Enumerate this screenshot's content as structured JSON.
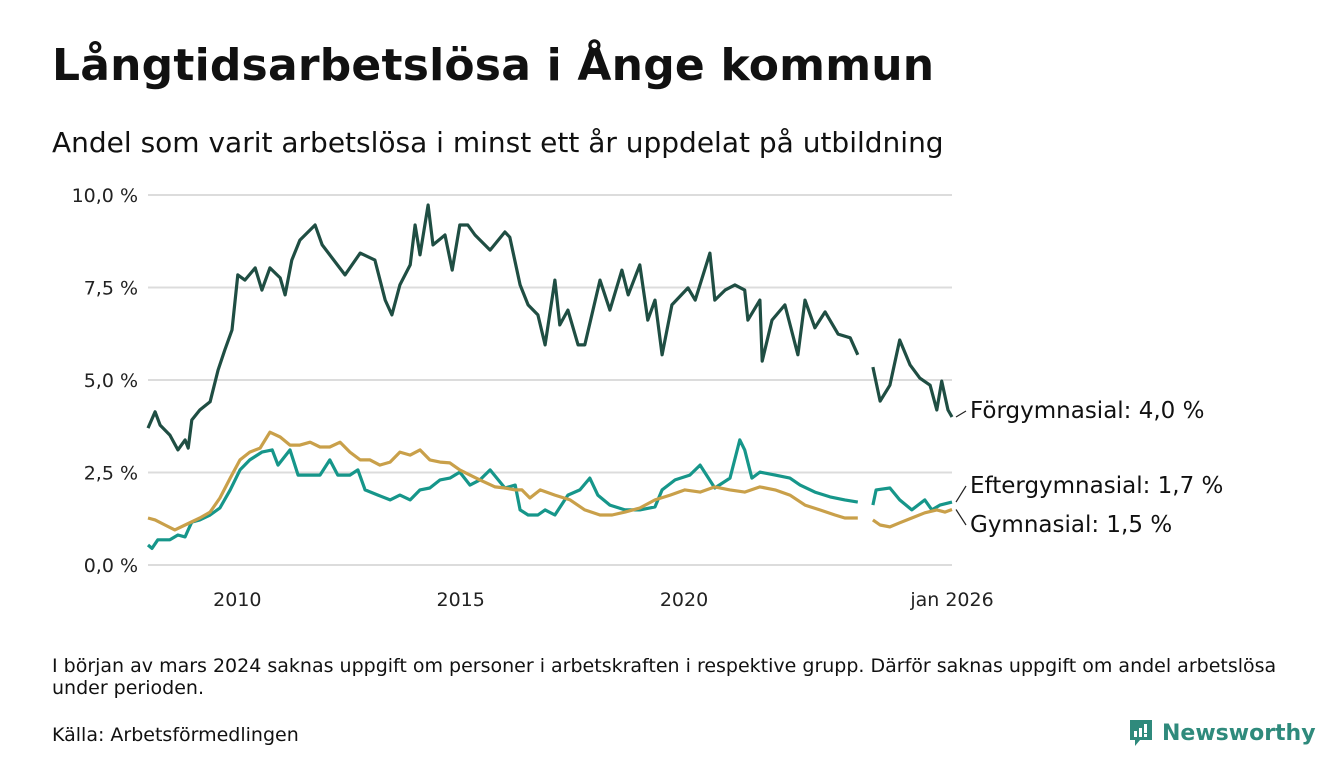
{
  "header": {
    "title": "Långtidsarbetslösa i Ånge kommun",
    "subtitle": "Andel som varit arbetslösa i minst ett år uppdelat på utbildning"
  },
  "footer": {
    "note": "I början av mars 2024 saknas uppgift om personer i arbetskraften i respektive grupp. Därför saknas uppgift om andel arbetslösa under perioden.",
    "source": "Källa: Arbetsförmedlingen",
    "brand": "Newsworthy"
  },
  "chart_data": {
    "type": "line",
    "title": "Långtidsarbetslösa i Ånge kommun",
    "xlabel": "",
    "ylabel": "",
    "xlim": [
      2008.0,
      2026.0
    ],
    "ylim": [
      0,
      10
    ],
    "grid": true,
    "y_ticks": [
      {
        "v": 0,
        "label": "0,0 %"
      },
      {
        "v": 2.5,
        "label": "2,5 %"
      },
      {
        "v": 5,
        "label": "5,0 %"
      },
      {
        "v": 7.5,
        "label": "7,5 %"
      },
      {
        "v": 10,
        "label": "10,0 %"
      }
    ],
    "x_ticks": [
      {
        "v": 2010,
        "label": "2010"
      },
      {
        "v": 2015,
        "label": "2015"
      },
      {
        "v": 2020,
        "label": "2020"
      },
      {
        "v": 2026,
        "label": "jan 2026"
      }
    ],
    "series": [
      {
        "name": "Förgymnasial",
        "end_label": "Förgymnasial: 4,0 %",
        "color": "#1f4e43",
        "points": [
          [
            2008.0,
            3.7
          ],
          [
            2008.16,
            4.14
          ],
          [
            2008.27,
            3.78
          ],
          [
            2008.49,
            3.51
          ],
          [
            2008.67,
            3.11
          ],
          [
            2008.83,
            3.38
          ],
          [
            2008.9,
            3.16
          ],
          [
            2008.98,
            3.92
          ],
          [
            2009.16,
            4.19
          ],
          [
            2009.39,
            4.41
          ],
          [
            2009.57,
            5.27
          ],
          [
            2009.72,
            5.81
          ],
          [
            2009.88,
            6.35
          ],
          [
            2010.01,
            7.84
          ],
          [
            2010.17,
            7.7
          ],
          [
            2010.4,
            8.03
          ],
          [
            2010.55,
            7.43
          ],
          [
            2010.73,
            8.03
          ],
          [
            2010.96,
            7.76
          ],
          [
            2011.07,
            7.3
          ],
          [
            2011.22,
            8.24
          ],
          [
            2011.4,
            8.78
          ],
          [
            2011.74,
            9.19
          ],
          [
            2011.9,
            8.65
          ],
          [
            2012.07,
            8.38
          ],
          [
            2012.41,
            7.84
          ],
          [
            2012.75,
            8.43
          ],
          [
            2013.08,
            8.24
          ],
          [
            2013.31,
            7.16
          ],
          [
            2013.46,
            6.76
          ],
          [
            2013.64,
            7.57
          ],
          [
            2013.87,
            8.11
          ],
          [
            2013.98,
            9.19
          ],
          [
            2014.09,
            8.38
          ],
          [
            2014.27,
            9.73
          ],
          [
            2014.38,
            8.65
          ],
          [
            2014.65,
            8.92
          ],
          [
            2014.81,
            7.97
          ],
          [
            2014.98,
            9.19
          ],
          [
            2015.16,
            9.19
          ],
          [
            2015.32,
            8.92
          ],
          [
            2015.66,
            8.51
          ],
          [
            2015.99,
            9.0
          ],
          [
            2016.1,
            8.86
          ],
          [
            2016.33,
            7.57
          ],
          [
            2016.51,
            7.03
          ],
          [
            2016.73,
            6.76
          ],
          [
            2016.89,
            5.95
          ],
          [
            2017.11,
            7.7
          ],
          [
            2017.22,
            6.49
          ],
          [
            2017.4,
            6.89
          ],
          [
            2017.63,
            5.95
          ],
          [
            2017.78,
            5.95
          ],
          [
            2018.12,
            7.7
          ],
          [
            2018.34,
            6.89
          ],
          [
            2018.61,
            7.97
          ],
          [
            2018.75,
            7.3
          ],
          [
            2019.01,
            8.11
          ],
          [
            2019.19,
            6.62
          ],
          [
            2019.35,
            7.16
          ],
          [
            2019.51,
            5.68
          ],
          [
            2019.73,
            7.03
          ],
          [
            2020.09,
            7.49
          ],
          [
            2020.25,
            7.16
          ],
          [
            2020.58,
            8.43
          ],
          [
            2020.69,
            7.16
          ],
          [
            2020.92,
            7.43
          ],
          [
            2021.14,
            7.57
          ],
          [
            2021.36,
            7.43
          ],
          [
            2021.43,
            6.62
          ],
          [
            2021.7,
            7.16
          ],
          [
            2021.75,
            5.51
          ],
          [
            2021.97,
            6.62
          ],
          [
            2022.26,
            7.03
          ],
          [
            2022.55,
            5.68
          ],
          [
            2022.71,
            7.16
          ],
          [
            2022.93,
            6.41
          ],
          [
            2023.16,
            6.84
          ],
          [
            2023.45,
            6.24
          ],
          [
            2023.72,
            6.14
          ],
          [
            2023.89,
            5.68
          ],
          null,
          [
            2024.23,
            5.35
          ],
          [
            2024.39,
            4.43
          ],
          [
            2024.61,
            4.86
          ],
          [
            2024.83,
            6.08
          ],
          [
            2025.06,
            5.41
          ],
          [
            2025.28,
            5.05
          ],
          [
            2025.51,
            4.86
          ],
          [
            2025.66,
            4.19
          ],
          [
            2025.77,
            4.97
          ],
          [
            2025.91,
            4.19
          ],
          [
            2026.0,
            4.0
          ]
        ]
      },
      {
        "name": "Eftergymnasial",
        "end_label": "Eftergymnasial: 1,7 %",
        "color": "#16968a",
        "points": [
          [
            2008.0,
            0.54
          ],
          [
            2008.09,
            0.45
          ],
          [
            2008.22,
            0.68
          ],
          [
            2008.49,
            0.68
          ],
          [
            2008.67,
            0.81
          ],
          [
            2008.83,
            0.76
          ],
          [
            2008.9,
            0.95
          ],
          [
            2008.98,
            1.16
          ],
          [
            2009.16,
            1.22
          ],
          [
            2009.39,
            1.35
          ],
          [
            2009.61,
            1.54
          ],
          [
            2009.84,
            2.03
          ],
          [
            2010.06,
            2.57
          ],
          [
            2010.28,
            2.84
          ],
          [
            2010.55,
            3.05
          ],
          [
            2010.78,
            3.11
          ],
          [
            2010.91,
            2.7
          ],
          [
            2011.18,
            3.11
          ],
          [
            2011.36,
            2.43
          ],
          [
            2011.63,
            2.43
          ],
          [
            2011.85,
            2.43
          ],
          [
            2012.07,
            2.84
          ],
          [
            2012.25,
            2.43
          ],
          [
            2012.52,
            2.43
          ],
          [
            2012.7,
            2.57
          ],
          [
            2012.86,
            2.03
          ],
          [
            2013.15,
            1.89
          ],
          [
            2013.42,
            1.76
          ],
          [
            2013.64,
            1.89
          ],
          [
            2013.87,
            1.76
          ],
          [
            2014.09,
            2.03
          ],
          [
            2014.31,
            2.08
          ],
          [
            2014.54,
            2.3
          ],
          [
            2014.76,
            2.35
          ],
          [
            2014.98,
            2.51
          ],
          [
            2015.21,
            2.16
          ],
          [
            2015.43,
            2.3
          ],
          [
            2015.66,
            2.57
          ],
          [
            2015.99,
            2.08
          ],
          [
            2016.22,
            2.16
          ],
          [
            2016.33,
            1.49
          ],
          [
            2016.51,
            1.35
          ],
          [
            2016.73,
            1.35
          ],
          [
            2016.89,
            1.49
          ],
          [
            2017.11,
            1.35
          ],
          [
            2017.4,
            1.89
          ],
          [
            2017.67,
            2.03
          ],
          [
            2017.89,
            2.35
          ],
          [
            2018.07,
            1.89
          ],
          [
            2018.34,
            1.62
          ],
          [
            2018.68,
            1.49
          ],
          [
            2019.01,
            1.49
          ],
          [
            2019.35,
            1.57
          ],
          [
            2019.51,
            2.03
          ],
          [
            2019.8,
            2.3
          ],
          [
            2020.13,
            2.43
          ],
          [
            2020.36,
            2.7
          ],
          [
            2020.69,
            2.08
          ],
          [
            2021.03,
            2.35
          ],
          [
            2021.25,
            3.38
          ],
          [
            2021.36,
            3.11
          ],
          [
            2021.52,
            2.35
          ],
          [
            2021.7,
            2.51
          ],
          [
            2022.04,
            2.43
          ],
          [
            2022.37,
            2.35
          ],
          [
            2022.6,
            2.16
          ],
          [
            2022.93,
            1.97
          ],
          [
            2023.27,
            1.84
          ],
          [
            2023.6,
            1.76
          ],
          [
            2023.89,
            1.7
          ],
          null,
          [
            2024.23,
            1.62
          ],
          [
            2024.3,
            2.03
          ],
          [
            2024.61,
            2.08
          ],
          [
            2024.83,
            1.76
          ],
          [
            2025.1,
            1.49
          ],
          [
            2025.39,
            1.76
          ],
          [
            2025.55,
            1.49
          ],
          [
            2025.73,
            1.62
          ],
          [
            2026.0,
            1.7
          ]
        ]
      },
      {
        "name": "Gymnasial",
        "end_label": "Gymnasial: 1,5 %",
        "color": "#c9a04a",
        "points": [
          [
            2008.0,
            1.27
          ],
          [
            2008.16,
            1.22
          ],
          [
            2008.38,
            1.08
          ],
          [
            2008.6,
            0.95
          ],
          [
            2008.83,
            1.08
          ],
          [
            2009.16,
            1.27
          ],
          [
            2009.39,
            1.43
          ],
          [
            2009.61,
            1.81
          ],
          [
            2009.84,
            2.35
          ],
          [
            2010.06,
            2.84
          ],
          [
            2010.28,
            3.05
          ],
          [
            2010.51,
            3.16
          ],
          [
            2010.73,
            3.59
          ],
          [
            2010.96,
            3.46
          ],
          [
            2011.18,
            3.24
          ],
          [
            2011.4,
            3.24
          ],
          [
            2011.63,
            3.32
          ],
          [
            2011.85,
            3.19
          ],
          [
            2012.07,
            3.19
          ],
          [
            2012.3,
            3.32
          ],
          [
            2012.52,
            3.05
          ],
          [
            2012.75,
            2.84
          ],
          [
            2012.97,
            2.84
          ],
          [
            2013.19,
            2.7
          ],
          [
            2013.42,
            2.78
          ],
          [
            2013.64,
            3.05
          ],
          [
            2013.87,
            2.97
          ],
          [
            2014.09,
            3.11
          ],
          [
            2014.31,
            2.84
          ],
          [
            2014.54,
            2.78
          ],
          [
            2014.76,
            2.76
          ],
          [
            2014.98,
            2.57
          ],
          [
            2015.21,
            2.43
          ],
          [
            2015.43,
            2.3
          ],
          [
            2015.77,
            2.11
          ],
          [
            2015.99,
            2.08
          ],
          [
            2016.22,
            2.03
          ],
          [
            2016.37,
            2.03
          ],
          [
            2016.55,
            1.81
          ],
          [
            2016.78,
            2.03
          ],
          [
            2017.11,
            1.89
          ],
          [
            2017.45,
            1.76
          ],
          [
            2017.78,
            1.49
          ],
          [
            2018.12,
            1.35
          ],
          [
            2018.39,
            1.35
          ],
          [
            2018.68,
            1.43
          ],
          [
            2019.01,
            1.54
          ],
          [
            2019.35,
            1.76
          ],
          [
            2019.69,
            1.89
          ],
          [
            2020.02,
            2.03
          ],
          [
            2020.36,
            1.97
          ],
          [
            2020.69,
            2.11
          ],
          [
            2021.03,
            2.03
          ],
          [
            2021.36,
            1.97
          ],
          [
            2021.7,
            2.11
          ],
          [
            2022.04,
            2.03
          ],
          [
            2022.37,
            1.89
          ],
          [
            2022.71,
            1.62
          ],
          [
            2023.04,
            1.49
          ],
          [
            2023.38,
            1.35
          ],
          [
            2023.6,
            1.27
          ],
          [
            2023.89,
            1.27
          ],
          null,
          [
            2024.23,
            1.22
          ],
          [
            2024.39,
            1.08
          ],
          [
            2024.61,
            1.03
          ],
          [
            2024.83,
            1.14
          ],
          [
            2025.1,
            1.27
          ],
          [
            2025.39,
            1.41
          ],
          [
            2025.66,
            1.49
          ],
          [
            2025.84,
            1.43
          ],
          [
            2026.0,
            1.5
          ]
        ]
      }
    ]
  }
}
